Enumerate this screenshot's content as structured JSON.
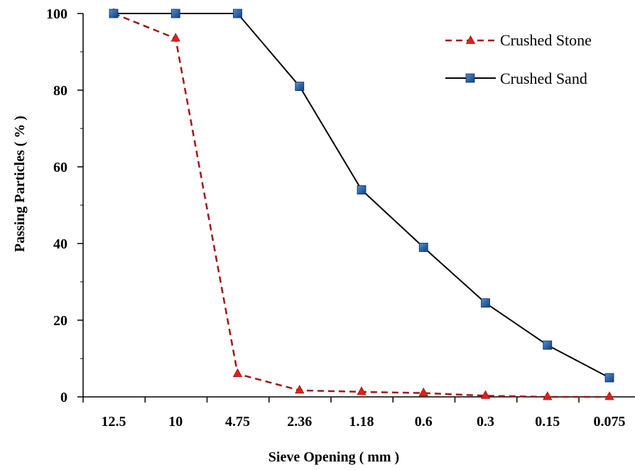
{
  "chart_data": {
    "type": "line",
    "title": "",
    "xlabel": "Sieve Opening ( mm )",
    "ylabel": "Passing Particles ( % )",
    "categories": [
      "12.5",
      "10",
      "4.75",
      "2.36",
      "1.18",
      "0.6",
      "0.3",
      "0.15",
      "0.075"
    ],
    "ylim": [
      0,
      100
    ],
    "yticks": [
      0,
      20,
      40,
      60,
      80,
      100
    ],
    "grid": false,
    "legend_position": "top-right",
    "series": [
      {
        "name": "Crushed Stone",
        "values": [
          100,
          93.5,
          6,
          1.7,
          1.3,
          1,
          0.3,
          0,
          0
        ],
        "color": "#a31515",
        "marker_color": "#e0201b",
        "line_style": "dashed",
        "marker": "triangle"
      },
      {
        "name": "Crushed Sand",
        "values": [
          100,
          100,
          100,
          81,
          54,
          39,
          24.5,
          13.5,
          5
        ],
        "color": "#000000",
        "marker_color": "#1f5fa8",
        "line_style": "solid",
        "marker": "square"
      }
    ]
  }
}
